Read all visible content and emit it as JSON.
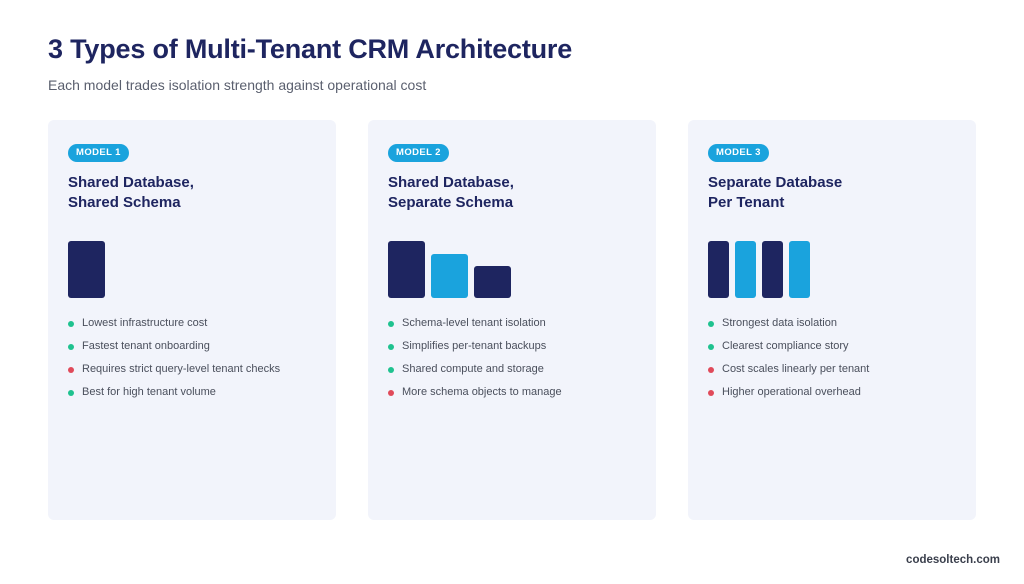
{
  "header": {
    "title": "3 Types of Multi-Tenant CRM Architecture",
    "subtitle": "Each model trades isolation strength against operational cost"
  },
  "colors": {
    "navy": "#1e2560",
    "blue": "#1aa3dd",
    "positive": "#1fc28f",
    "negative": "#e04a5a",
    "card_bg": "#f2f4fb"
  },
  "cards": [
    {
      "badge": "MODEL 1",
      "title_line1": "Shared Database,",
      "title_line2": "Shared Schema",
      "blocks": [
        {
          "color": "navy",
          "relative_height": 1.0
        }
      ],
      "points": [
        {
          "text": "Lowest infrastructure cost",
          "kind": "pro"
        },
        {
          "text": "Fastest tenant onboarding",
          "kind": "pro"
        },
        {
          "text": "Requires strict query-level tenant checks",
          "kind": "con"
        },
        {
          "text": "Best for high tenant volume",
          "kind": "pro"
        }
      ]
    },
    {
      "badge": "MODEL 2",
      "title_line1": "Shared Database,",
      "title_line2": "Separate Schema",
      "blocks": [
        {
          "color": "navy",
          "relative_height": 1.0
        },
        {
          "color": "blue",
          "relative_height": 0.78
        },
        {
          "color": "navy",
          "relative_height": 0.57
        }
      ],
      "points": [
        {
          "text": "Schema-level tenant isolation",
          "kind": "pro"
        },
        {
          "text": "Simplifies per-tenant backups",
          "kind": "pro"
        },
        {
          "text": "Shared compute and storage",
          "kind": "pro"
        },
        {
          "text": "More schema objects to manage",
          "kind": "con"
        }
      ]
    },
    {
      "badge": "MODEL 3",
      "title_line1": "Separate Database",
      "title_line2": "Per Tenant",
      "blocks": [
        {
          "color": "navy",
          "relative_height": 1.0
        },
        {
          "color": "blue",
          "relative_height": 1.0
        },
        {
          "color": "navy",
          "relative_height": 1.0
        },
        {
          "color": "blue",
          "relative_height": 1.0
        }
      ],
      "points": [
        {
          "text": "Strongest data isolation",
          "kind": "pro"
        },
        {
          "text": "Clearest compliance story",
          "kind": "pro"
        },
        {
          "text": "Cost scales linearly per tenant",
          "kind": "con"
        },
        {
          "text": "Higher operational overhead",
          "kind": "con"
        }
      ]
    }
  ],
  "footer": {
    "brand": "codesoltech.com"
  }
}
